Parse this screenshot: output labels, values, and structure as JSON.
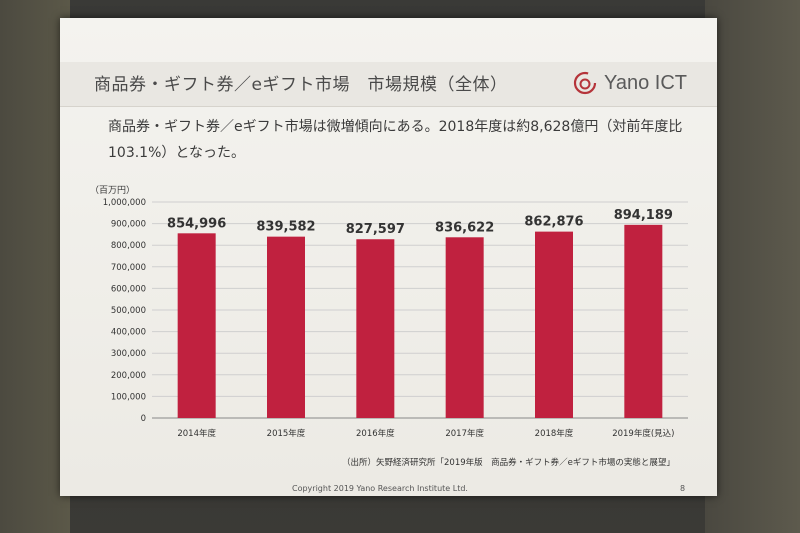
{
  "slide": {
    "title": "商品券・ギフト券／eギフト市場　市場規模（全体）",
    "logo_text": "Yano ICT",
    "summary": "商品券・ギフト券／eギフト市場は微増傾向にある。2018年度は約8,628億円（対前年度比103.1%）となった。",
    "source": "（出所）矢野経済研究所「2019年版　商品券・ギフト券／eギフト市場の実態と展望」",
    "copyright": "Copyright 2019 Yano Research Institute Ltd.",
    "page_number": "8"
  },
  "colors": {
    "bar": "#c0213f",
    "grid": "#cfcfcf",
    "logo": "#b5343a"
  },
  "chart_data": {
    "type": "bar",
    "unit_label": "（百万円）",
    "categories": [
      "2014年度",
      "2015年度",
      "2016年度",
      "2017年度",
      "2018年度",
      "2019年度(見込)"
    ],
    "values": [
      854996,
      839582,
      827597,
      836622,
      862876,
      894189
    ],
    "data_labels": [
      "854,996",
      "839,582",
      "827,597",
      "836,622",
      "862,876",
      "894,189"
    ],
    "ylim": [
      0,
      1000000
    ],
    "yticks": [
      "0",
      "100,000",
      "200,000",
      "300,000",
      "400,000",
      "500,000",
      "600,000",
      "700,000",
      "800,000",
      "900,000",
      "1,000,000"
    ],
    "grid": true
  }
}
